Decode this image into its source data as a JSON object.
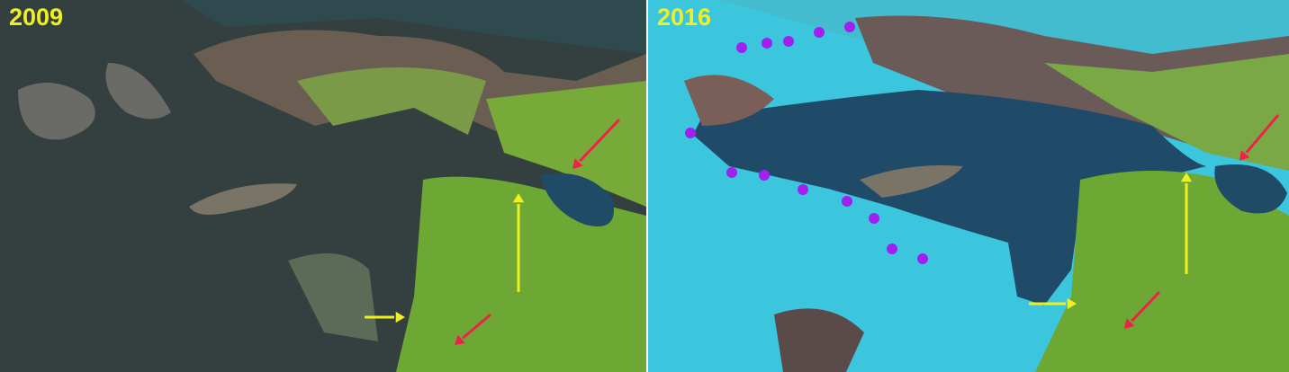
{
  "panels": [
    {
      "year_label": "2009"
    },
    {
      "year_label": "2016"
    }
  ],
  "colors": {
    "year_label": "#f0f020",
    "yellow_arrow": "#f0f020",
    "red_arrow": "#f0204a",
    "purple_dot": "#a020f0",
    "snow_ice": "#3cc6de",
    "glacier": "#1f4a68",
    "vegetation": "#6ea834",
    "water_2009": "#2b4654"
  }
}
